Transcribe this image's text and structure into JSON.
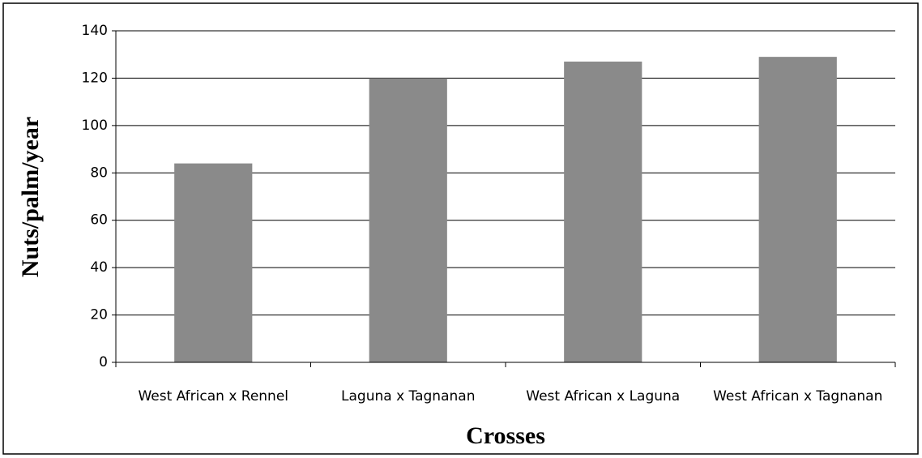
{
  "chart_data": {
    "type": "bar",
    "categories": [
      "West African x Rennel",
      "Laguna  x Tagnanan",
      "West African  x  Laguna",
      "West African x Tagnanan"
    ],
    "values": [
      84,
      120,
      127,
      129
    ],
    "color": "#8a8a8a",
    "xlabel": "Crosses",
    "ylabel": "Nuts/palm/year",
    "ylim": [
      0,
      140
    ],
    "yticks": [
      0,
      20,
      40,
      60,
      80,
      100,
      120,
      140
    ],
    "grid": true
  }
}
